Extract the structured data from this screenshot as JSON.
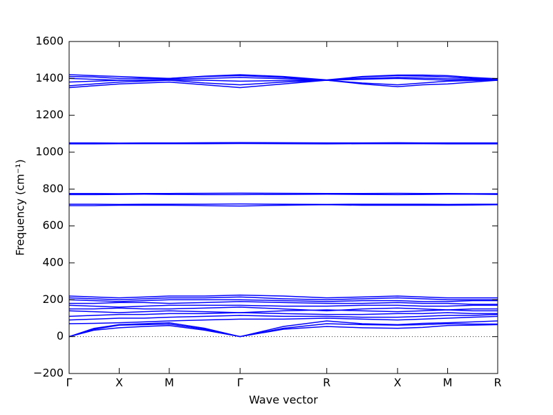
{
  "chart_data": {
    "type": "line",
    "xlabel": "Wave vector",
    "ylabel": "Frequency (cm⁻¹)",
    "x": [
      0,
      0.25,
      0.5,
      0.75,
      1.0,
      1.354,
      1.707,
      2.14,
      2.573,
      2.927,
      3.28,
      3.53,
      3.78,
      4.03,
      4.28
    ],
    "xlim": [
      0,
      4.28
    ],
    "xticks": [
      {
        "value": 0,
        "label": "Γ"
      },
      {
        "value": 0.5,
        "label": "X"
      },
      {
        "value": 1.0,
        "label": "M"
      },
      {
        "value": 1.707,
        "label": "Γ"
      },
      {
        "value": 2.573,
        "label": "R"
      },
      {
        "value": 3.28,
        "label": "X"
      },
      {
        "value": 3.78,
        "label": "M"
      },
      {
        "value": 4.28,
        "label": "R"
      }
    ],
    "ylim": [
      -200,
      1600
    ],
    "yticks": [
      {
        "value": -200,
        "label": "−200"
      },
      0,
      200,
      400,
      600,
      800,
      1000,
      1200,
      1400,
      1600
    ],
    "reference_line": {
      "y": 0,
      "style": "dotted"
    },
    "series": [
      {
        "color": "#0000ff",
        "values": [
          0,
          35,
          48,
          55,
          60,
          35,
          0,
          40,
          55,
          48,
          45,
          50,
          60,
          62,
          65
        ]
      },
      {
        "color": "#0000ff",
        "values": [
          0,
          40,
          62,
          65,
          68,
          40,
          0,
          45,
          70,
          65,
          62,
          65,
          70,
          68,
          68
        ]
      },
      {
        "color": "#0000ff",
        "values": [
          0,
          45,
          65,
          70,
          75,
          45,
          0,
          55,
          85,
          70,
          65,
          72,
          75,
          80,
          85
        ]
      },
      {
        "color": "#0000ff",
        "values": [
          70,
          72,
          75,
          80,
          85,
          90,
          95,
          95,
          100,
          95,
          90,
          95,
          100,
          105,
          110
        ]
      },
      {
        "color": "#0000ff",
        "values": [
          90,
          95,
          100,
          100,
          105,
          110,
          115,
          110,
          110,
          105,
          105,
          110,
          115,
          115,
          120
        ]
      },
      {
        "color": "#0000ff",
        "values": [
          110,
          115,
          120,
          120,
          125,
          125,
          130,
          125,
          120,
          120,
          125,
          125,
          130,
          125,
          125
        ]
      },
      {
        "color": "#0000ff",
        "values": [
          140,
          135,
          130,
          135,
          140,
          135,
          130,
          140,
          145,
          140,
          135,
          140,
          145,
          140,
          140
        ]
      },
      {
        "color": "#0000ff",
        "values": [
          150,
          150,
          155,
          150,
          150,
          155,
          160,
          150,
          140,
          150,
          155,
          150,
          145,
          150,
          150
        ]
      },
      {
        "color": "#0000ff",
        "values": [
          170,
          165,
          160,
          165,
          170,
          170,
          170,
          165,
          165,
          170,
          170,
          165,
          165,
          170,
          170
        ]
      },
      {
        "color": "#0000ff",
        "values": [
          180,
          180,
          185,
          185,
          180,
          185,
          190,
          185,
          180,
          180,
          185,
          180,
          180,
          175,
          175
        ]
      },
      {
        "color": "#0000ff",
        "values": [
          200,
          195,
          190,
          195,
          200,
          200,
          200,
          195,
          190,
          195,
          195,
          190,
          190,
          195,
          195
        ]
      },
      {
        "color": "#0000ff",
        "values": [
          210,
          205,
          200,
          205,
          210,
          210,
          215,
          205,
          200,
          205,
          210,
          205,
          200,
          200,
          200
        ]
      },
      {
        "color": "#0000ff",
        "values": [
          220,
          215,
          210,
          215,
          220,
          220,
          225,
          220,
          210,
          215,
          220,
          215,
          210,
          210,
          210
        ]
      },
      {
        "color": "#0000ff",
        "values": [
          710,
          710,
          712,
          712,
          712,
          710,
          708,
          712,
          715,
          712,
          712,
          712,
          712,
          713,
          715
        ]
      },
      {
        "color": "#0000ff",
        "values": [
          718,
          718,
          717,
          718,
          718,
          718,
          719,
          718,
          717,
          718,
          718,
          718,
          717,
          718,
          718
        ]
      },
      {
        "color": "#0000ff",
        "values": [
          770,
          770,
          771,
          772,
          771,
          770,
          770,
          771,
          772,
          771,
          770,
          771,
          772,
          772,
          771
        ]
      },
      {
        "color": "#0000ff",
        "values": [
          776,
          776,
          775,
          776,
          776,
          777,
          778,
          777,
          776,
          776,
          777,
          776,
          776,
          775,
          775
        ]
      },
      {
        "color": "#0000ff",
        "values": [
          1045,
          1045,
          1046,
          1046,
          1046,
          1046,
          1047,
          1046,
          1045,
          1046,
          1046,
          1046,
          1045,
          1045,
          1045
        ]
      },
      {
        "color": "#0000ff",
        "values": [
          1050,
          1050,
          1049,
          1050,
          1050,
          1051,
          1052,
          1051,
          1050,
          1050,
          1051,
          1050,
          1050,
          1050,
          1050
        ]
      },
      {
        "color": "#0000ff",
        "values": [
          1350,
          1360,
          1370,
          1375,
          1380,
          1365,
          1350,
          1370,
          1390,
          1370,
          1355,
          1365,
          1370,
          1380,
          1390
        ]
      },
      {
        "color": "#0000ff",
        "values": [
          1360,
          1370,
          1380,
          1385,
          1390,
          1375,
          1365,
          1380,
          1390,
          1375,
          1365,
          1375,
          1385,
          1388,
          1390
        ]
      },
      {
        "color": "#0000ff",
        "values": [
          1380,
          1385,
          1390,
          1390,
          1390,
          1390,
          1385,
          1388,
          1390,
          1395,
          1400,
          1395,
          1390,
          1390,
          1390
        ]
      },
      {
        "color": "#0000ff",
        "values": [
          1400,
          1395,
          1390,
          1392,
          1395,
          1400,
          1405,
          1398,
          1390,
          1400,
          1405,
          1402,
          1398,
          1395,
          1392
        ]
      },
      {
        "color": "#0000ff",
        "values": [
          1410,
          1408,
          1400,
          1400,
          1400,
          1410,
          1415,
          1405,
          1390,
          1408,
          1415,
          1412,
          1408,
          1400,
          1395
        ]
      },
      {
        "color": "#0000ff",
        "values": [
          1420,
          1415,
          1410,
          1405,
          1400,
          1412,
          1420,
          1410,
          1392,
          1410,
          1418,
          1418,
          1415,
          1405,
          1398
        ]
      }
    ]
  }
}
